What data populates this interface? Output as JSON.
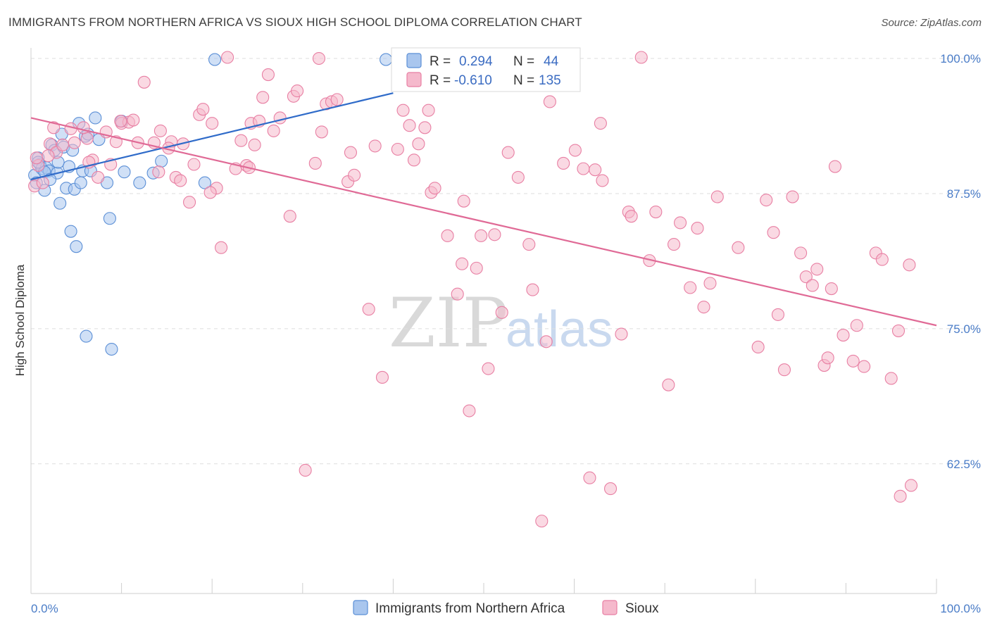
{
  "title": "IMMIGRANTS FROM NORTHERN AFRICA VS SIOUX HIGH SCHOOL DIPLOMA CORRELATION CHART",
  "source": "Source: ZipAtlas.com",
  "watermark": {
    "zip": "ZIP",
    "atlas": "atlas"
  },
  "legend_top": [
    {
      "r_label": "R =",
      "r_value": "0.294",
      "n_label": "N =",
      "n_value": "44"
    },
    {
      "r_label": "R =",
      "r_value": "-0.610",
      "n_label": "N =",
      "n_value": "135"
    }
  ],
  "legend_bottom": [
    "Immigrants from Northern Africa",
    "Sioux"
  ],
  "colors": {
    "blue_fill": "#a9c6ee",
    "blue_stroke": "#5b8fd6",
    "blue_line": "#2f6bc9",
    "pink_fill": "#f5b9cc",
    "pink_stroke": "#e87fa3",
    "pink_line": "#e06a96",
    "tick_text": "#4a7cc7",
    "grid": "#dedede"
  },
  "chart_data": {
    "type": "scatter",
    "title": "IMMIGRANTS FROM NORTHERN AFRICA VS SIOUX HIGH SCHOOL DIPLOMA CORRELATION CHART",
    "xlabel": "",
    "ylabel": "High School Diploma",
    "xlim": [
      0,
      100
    ],
    "ylim": [
      50.5,
      101.5
    ],
    "x_tick_labels": [
      "0.0%",
      "100.0%"
    ],
    "y_ticks": [
      62.5,
      75.0,
      87.5,
      100.0
    ],
    "y_tick_labels": [
      "62.5%",
      "75.0%",
      "87.5%",
      "100.0%"
    ],
    "grid": "horizontal dashed",
    "legend_position": "top-center",
    "series": [
      {
        "name": "Immigrants from Northern Africa",
        "r": 0.294,
        "n": 44,
        "trend": {
          "x": [
            0,
            40
          ],
          "y": [
            88.8,
            96.8
          ]
        },
        "points": [
          [
            0.4,
            89.2
          ],
          [
            0.6,
            88.5
          ],
          [
            0.8,
            90.8
          ],
          [
            1.0,
            90.2
          ],
          [
            1.2,
            89.8
          ],
          [
            1.5,
            87.8
          ],
          [
            1.7,
            89.9
          ],
          [
            2.0,
            89.6
          ],
          [
            2.3,
            92.0
          ],
          [
            2.6,
            91.5
          ],
          [
            2.9,
            89.4
          ],
          [
            3.2,
            86.6
          ],
          [
            3.4,
            93.0
          ],
          [
            3.6,
            91.8
          ],
          [
            3.9,
            88.0
          ],
          [
            4.2,
            90.0
          ],
          [
            4.6,
            91.5
          ],
          [
            4.8,
            87.9
          ],
          [
            5.5,
            88.5
          ],
          [
            5.7,
            89.6
          ],
          [
            6.0,
            92.8
          ],
          [
            6.3,
            93.0
          ],
          [
            6.6,
            89.6
          ],
          [
            7.1,
            94.5
          ],
          [
            7.5,
            92.5
          ],
          [
            8.4,
            88.5
          ],
          [
            8.7,
            85.2
          ],
          [
            10.0,
            94.2
          ],
          [
            10.3,
            89.5
          ],
          [
            12.0,
            88.5
          ],
          [
            13.5,
            89.4
          ],
          [
            14.4,
            90.5
          ],
          [
            1.5,
            89.5
          ],
          [
            2.1,
            88.8
          ],
          [
            3.0,
            90.4
          ],
          [
            4.4,
            84.0
          ],
          [
            5.0,
            82.6
          ],
          [
            6.1,
            74.3
          ],
          [
            8.9,
            73.1
          ],
          [
            19.2,
            88.5
          ],
          [
            20.3,
            99.9
          ],
          [
            39.2,
            99.9
          ],
          [
            0.8,
            90.4
          ],
          [
            5.3,
            94.0
          ]
        ]
      },
      {
        "name": "Sioux",
        "r": -0.61,
        "n": 135,
        "trend": {
          "x": [
            0,
            100
          ],
          "y": [
            94.5,
            75.3
          ]
        },
        "points": [
          [
            0.4,
            88.2
          ],
          [
            0.8,
            90.1
          ],
          [
            1.3,
            88.5
          ],
          [
            2.1,
            92.1
          ],
          [
            2.8,
            91.3
          ],
          [
            3.5,
            92.0
          ],
          [
            4.4,
            93.5
          ],
          [
            4.8,
            92.2
          ],
          [
            6.2,
            92.6
          ],
          [
            6.8,
            90.6
          ],
          [
            7.4,
            89.0
          ],
          [
            8.3,
            93.2
          ],
          [
            8.8,
            90.2
          ],
          [
            9.4,
            92.3
          ],
          [
            10.0,
            94.0
          ],
          [
            10.8,
            94.1
          ],
          [
            11.3,
            94.3
          ],
          [
            11.8,
            92.2
          ],
          [
            12.5,
            97.8
          ],
          [
            13.6,
            92.2
          ],
          [
            14.3,
            93.3
          ],
          [
            15.5,
            92.3
          ],
          [
            16.0,
            89.0
          ],
          [
            16.5,
            88.7
          ],
          [
            16.8,
            92.1
          ],
          [
            17.5,
            86.7
          ],
          [
            18.0,
            90.2
          ],
          [
            18.6,
            94.8
          ],
          [
            19.0,
            95.3
          ],
          [
            20.0,
            94.0
          ],
          [
            20.5,
            88.0
          ],
          [
            21.0,
            82.5
          ],
          [
            21.7,
            100.1
          ],
          [
            22.6,
            89.8
          ],
          [
            23.2,
            92.4
          ],
          [
            23.8,
            90.1
          ],
          [
            24.3,
            94.0
          ],
          [
            24.7,
            92.0
          ],
          [
            25.2,
            94.2
          ],
          [
            25.6,
            96.4
          ],
          [
            26.2,
            98.5
          ],
          [
            26.8,
            93.3
          ],
          [
            28.6,
            85.4
          ],
          [
            29.0,
            96.5
          ],
          [
            29.4,
            97.0
          ],
          [
            31.4,
            90.3
          ],
          [
            31.8,
            100.0
          ],
          [
            32.1,
            93.2
          ],
          [
            32.6,
            95.8
          ],
          [
            33.2,
            96.0
          ],
          [
            35.0,
            88.6
          ],
          [
            35.3,
            91.3
          ],
          [
            35.7,
            89.2
          ],
          [
            37.3,
            76.8
          ],
          [
            38.8,
            70.5
          ],
          [
            41.1,
            95.2
          ],
          [
            41.8,
            93.8
          ],
          [
            42.3,
            90.6
          ],
          [
            42.8,
            92.1
          ],
          [
            43.9,
            95.2
          ],
          [
            44.2,
            87.6
          ],
          [
            44.6,
            88.0
          ],
          [
            46.0,
            83.6
          ],
          [
            47.1,
            78.2
          ],
          [
            47.8,
            86.8
          ],
          [
            48.4,
            67.4
          ],
          [
            49.2,
            80.6
          ],
          [
            49.7,
            83.6
          ],
          [
            50.5,
            71.3
          ],
          [
            51.2,
            83.7
          ],
          [
            52.7,
            91.3
          ],
          [
            53.8,
            89.0
          ],
          [
            55.0,
            82.8
          ],
          [
            55.4,
            78.6
          ],
          [
            56.4,
            57.2
          ],
          [
            56.9,
            73.8
          ],
          [
            57.3,
            96.0
          ],
          [
            58.8,
            90.3
          ],
          [
            60.1,
            91.5
          ],
          [
            61.0,
            89.8
          ],
          [
            61.7,
            61.2
          ],
          [
            62.3,
            89.7
          ],
          [
            63.1,
            88.7
          ],
          [
            64.0,
            60.2
          ],
          [
            65.2,
            74.5
          ],
          [
            66.0,
            85.8
          ],
          [
            66.3,
            85.4
          ],
          [
            67.4,
            100.1
          ],
          [
            68.3,
            81.3
          ],
          [
            69.0,
            85.8
          ],
          [
            70.4,
            69.8
          ],
          [
            71.0,
            82.8
          ],
          [
            71.7,
            84.8
          ],
          [
            72.8,
            78.8
          ],
          [
            73.6,
            84.3
          ],
          [
            74.3,
            77.0
          ],
          [
            75.0,
            79.2
          ],
          [
            75.8,
            87.2
          ],
          [
            78.1,
            82.5
          ],
          [
            80.3,
            73.3
          ],
          [
            81.2,
            86.9
          ],
          [
            82.0,
            83.9
          ],
          [
            82.5,
            76.3
          ],
          [
            83.2,
            71.2
          ],
          [
            84.1,
            87.2
          ],
          [
            85.0,
            82.0
          ],
          [
            85.6,
            79.8
          ],
          [
            86.8,
            80.5
          ],
          [
            87.6,
            71.6
          ],
          [
            88.0,
            72.3
          ],
          [
            88.4,
            78.7
          ],
          [
            88.8,
            90.0
          ],
          [
            89.7,
            74.4
          ],
          [
            91.2,
            75.3
          ],
          [
            92.0,
            71.5
          ],
          [
            93.3,
            82.0
          ],
          [
            94.0,
            81.4
          ],
          [
            95.0,
            70.4
          ],
          [
            95.8,
            74.8
          ],
          [
            96.0,
            59.5
          ],
          [
            97.0,
            80.9
          ],
          [
            97.2,
            60.5
          ],
          [
            1.9,
            91.0
          ],
          [
            5.8,
            93.6
          ],
          [
            6.4,
            90.4
          ],
          [
            9.9,
            94.2
          ],
          [
            14.1,
            89.5
          ],
          [
            15.2,
            91.7
          ],
          [
            19.8,
            87.6
          ],
          [
            24.1,
            89.9
          ],
          [
            27.5,
            94.5
          ],
          [
            30.3,
            61.9
          ],
          [
            33.8,
            96.2
          ],
          [
            38.0,
            91.9
          ],
          [
            40.5,
            91.6
          ],
          [
            43.5,
            93.6
          ],
          [
            47.6,
            81.0
          ],
          [
            52.0,
            76.5
          ],
          [
            62.9,
            94.0
          ],
          [
            86.3,
            79.0
          ],
          [
            90.8,
            72.0
          ],
          [
            0.6,
            90.8
          ],
          [
            2.5,
            93.6
          ]
        ]
      }
    ]
  }
}
